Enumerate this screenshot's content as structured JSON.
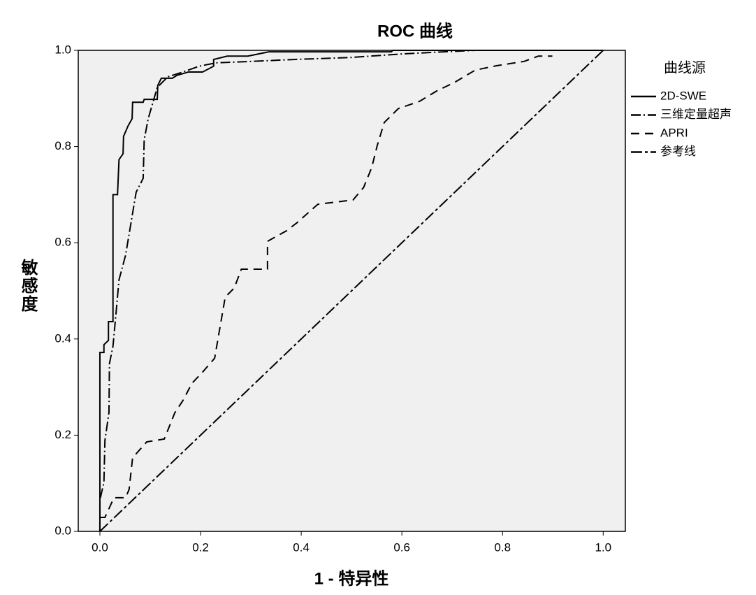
{
  "chart_data": {
    "type": "line",
    "title": "ROC 曲线",
    "x_label": "1 - 特异性",
    "y_label": "敏感度",
    "xlim": [
      -0.043,
      1.044
    ],
    "ylim": [
      0,
      1
    ],
    "xticks": [
      {
        "value": 0,
        "label": "0.0"
      },
      {
        "value": 0.2,
        "label": "0.2"
      },
      {
        "value": 0.4,
        "label": "0.4"
      },
      {
        "value": 0.6,
        "label": "0.6"
      },
      {
        "value": 0.8,
        "label": "0.8"
      },
      {
        "value": 1,
        "label": "1.0"
      }
    ],
    "yticks": [
      {
        "value": 0,
        "label": "0.0"
      },
      {
        "value": 0.2,
        "label": "0.2"
      },
      {
        "value": 0.4,
        "label": "0.4"
      },
      {
        "value": 0.6,
        "label": "0.6"
      },
      {
        "value": 0.8,
        "label": "0.8"
      },
      {
        "value": 1,
        "label": "1.0"
      }
    ],
    "legend_title": "曲线源",
    "legend_position": "right",
    "plot_background": "#f0f0f0",
    "series": [
      {
        "name": "2D-SWE",
        "color": "#000000",
        "line_style": "solid",
        "x": [
          0,
          0,
          0.008,
          0.008,
          0.017,
          0.017,
          0.026,
          0.026,
          0.035,
          0.038,
          0.046,
          0.047,
          0.056,
          0.064,
          0.065,
          0.086,
          0.088,
          0.114,
          0.115,
          0.122,
          0.144,
          0.153,
          0.176,
          0.204,
          0.226,
          0.226,
          0.253,
          0.294,
          0.336,
          0.579,
          0.582,
          1.0
        ],
        "values": [
          0,
          0.372,
          0.372,
          0.388,
          0.397,
          0.436,
          0.436,
          0.7,
          0.7,
          0.773,
          0.785,
          0.821,
          0.843,
          0.858,
          0.892,
          0.892,
          0.898,
          0.898,
          0.927,
          0.942,
          0.942,
          0.948,
          0.955,
          0.955,
          0.967,
          0.981,
          0.988,
          0.988,
          0.997,
          0.997,
          1.0,
          1.0
        ]
      },
      {
        "name": "三维定量超声",
        "color": "#000000",
        "line_style": "dash-dot",
        "x": [
          0,
          0,
          0.008,
          0.01,
          0.018,
          0.019,
          0.026,
          0.032,
          0.038,
          0.051,
          0.072,
          0.086,
          0.088,
          0.096,
          0.114,
          0.135,
          0.165,
          0.197,
          0.231,
          0.301,
          0.385,
          0.496,
          0.607,
          0.746,
          1.0
        ],
        "values": [
          0,
          0.065,
          0.102,
          0.189,
          0.247,
          0.349,
          0.385,
          0.453,
          0.523,
          0.574,
          0.705,
          0.734,
          0.814,
          0.858,
          0.923,
          0.945,
          0.955,
          0.967,
          0.974,
          0.977,
          0.981,
          0.985,
          0.993,
          1,
          1
        ]
      },
      {
        "name": "APRI",
        "color": "#000000",
        "line_style": "dashed",
        "x": [
          0,
          0,
          0.01,
          0.028,
          0.051,
          0.058,
          0.065,
          0.093,
          0.128,
          0.149,
          0.165,
          0.183,
          0.204,
          0.228,
          0.249,
          0.267,
          0.281,
          0.333,
          0.333,
          0.371,
          0.392,
          0.433,
          0.503,
          0.524,
          0.54,
          0.551,
          0.565,
          0.593,
          0.635,
          0.67,
          0.704,
          0.746,
          0.788,
          0.843,
          0.871,
          0.899
        ],
        "values": [
          0,
          0.029,
          0.029,
          0.07,
          0.07,
          0.087,
          0.153,
          0.186,
          0.192,
          0.247,
          0.272,
          0.308,
          0.331,
          0.36,
          0.487,
          0.506,
          0.545,
          0.545,
          0.603,
          0.625,
          0.642,
          0.68,
          0.689,
          0.715,
          0.756,
          0.802,
          0.85,
          0.879,
          0.894,
          0.916,
          0.933,
          0.959,
          0.968,
          0.977,
          0.988,
          0.988
        ]
      },
      {
        "name": "参考线",
        "color": "#000000",
        "line_style": "long-dash-dot",
        "x": [
          0,
          1
        ],
        "values": [
          0,
          1
        ]
      }
    ]
  }
}
